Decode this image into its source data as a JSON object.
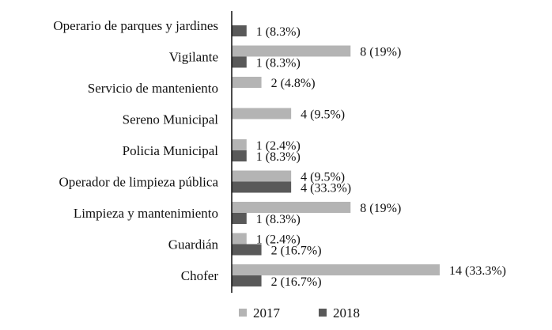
{
  "chart_data": {
    "type": "bar",
    "orientation": "horizontal",
    "categories": [
      "Operario de parques y jardines",
      "Vigilante",
      "Servicio de manteniento",
      "Sereno Municipal",
      "Policia Municipal",
      "Operador de limpieza pública",
      "Limpieza y mantenimiento",
      "Guardián",
      "Chofer"
    ],
    "series": [
      {
        "name": "2017",
        "color": "#b4b4b4",
        "values": [
          null,
          8,
          2,
          4,
          1,
          4,
          8,
          1,
          14
        ],
        "labels": [
          "",
          "8 (19%)",
          "2 (4.8%)",
          "4 (9.5%)",
          "1 (2.4%)",
          "4 (9.5%)",
          "8 (19%)",
          "1 (2.4%)",
          "14 (33.3%)"
        ]
      },
      {
        "name": "2018",
        "color": "#595959",
        "values": [
          1,
          1,
          null,
          null,
          1,
          4,
          1,
          2,
          2
        ],
        "labels": [
          "1 (8.3%)",
          "1 (8.3%)",
          "",
          "",
          "1 (8.3%)",
          "4 (33.3%)",
          "1 (8.3%)",
          "2 (16.7%)",
          "2 (16.7%)"
        ]
      }
    ],
    "xlim": [
      0,
      14
    ],
    "grid": false,
    "legend": "bottom"
  }
}
